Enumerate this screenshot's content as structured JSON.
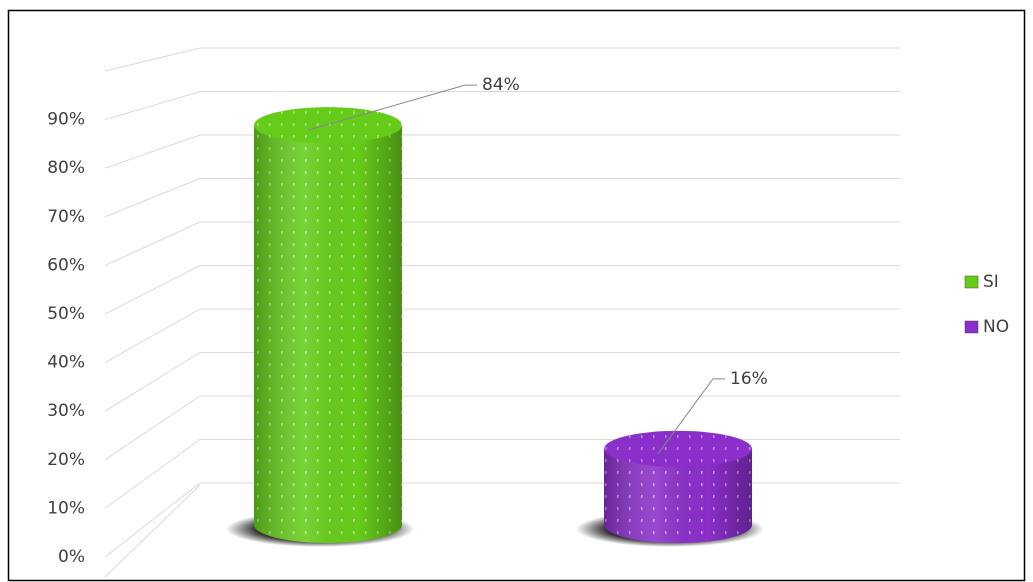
{
  "chart_data": {
    "type": "cylinder-bar",
    "series": [
      {
        "name": "SI",
        "color": "#66cc1a",
        "values": [
          84
        ],
        "value_labels": [
          "84%"
        ]
      },
      {
        "name": "NO",
        "color": "#8a2fc9",
        "values": [
          16
        ],
        "value_labels": [
          "16%"
        ]
      }
    ],
    "ylim": [
      0,
      100
    ],
    "yticks": [
      {
        "value": 0,
        "label": "0%"
      },
      {
        "value": 10,
        "label": "10%"
      },
      {
        "value": 20,
        "label": "20%"
      },
      {
        "value": 30,
        "label": "30%"
      },
      {
        "value": 40,
        "label": "40%"
      },
      {
        "value": 50,
        "label": "50%"
      },
      {
        "value": 60,
        "label": "60%"
      },
      {
        "value": 70,
        "label": "70%"
      },
      {
        "value": 80,
        "label": "80%"
      },
      {
        "value": 90,
        "label": "90%"
      }
    ],
    "grid": true,
    "legend": "right"
  }
}
